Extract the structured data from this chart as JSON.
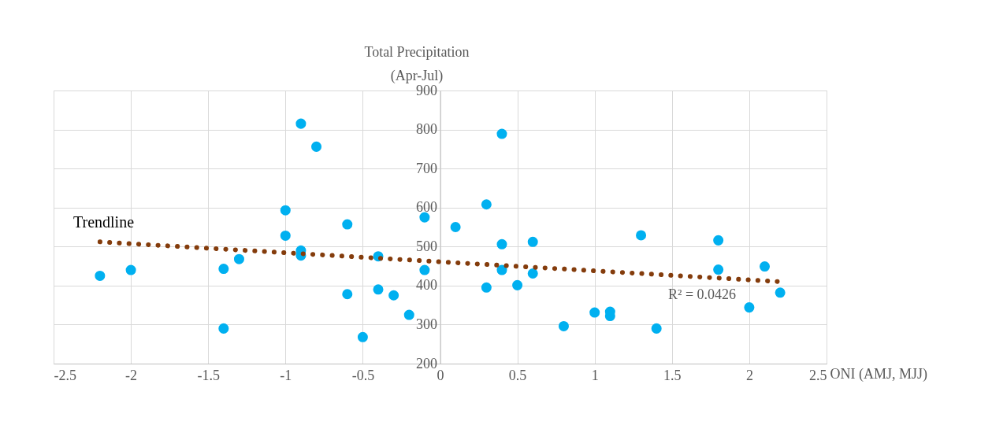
{
  "chart_data": {
    "type": "scatter",
    "xlabel": "ONI (AMJ, MJJ)",
    "ylabel": "Total Precipitation\n(Apr-Jul)",
    "xlim": [
      -2.5,
      2.5
    ],
    "xticks": [
      -2.5,
      -2,
      -1.5,
      -1,
      -0.5,
      0,
      0.5,
      1,
      1.5,
      2,
      2.5
    ],
    "ylim": [
      200,
      900
    ],
    "yticks": [
      200,
      300,
      400,
      500,
      600,
      700,
      800,
      900
    ],
    "grid": true,
    "annotations": [
      "Trendline",
      "R² = 0.0426"
    ],
    "series": [
      {
        "marker": "circle",
        "color": "#00b0f0",
        "x": [
          -2.2,
          -2.0,
          -1.4,
          -1.4,
          -1.3,
          -1.0,
          -1.0,
          -0.9,
          -0.9,
          -0.9,
          -0.8,
          -0.6,
          -0.6,
          -0.5,
          -0.4,
          -0.4,
          -0.3,
          -0.2,
          -0.1,
          -0.1,
          0.1,
          0.3,
          0.3,
          0.4,
          0.4,
          0.4,
          0.5,
          0.6,
          0.6,
          0.8,
          1.0,
          1.1,
          1.1,
          1.3,
          1.4,
          1.8,
          1.8,
          2.0,
          2.1,
          2.2
        ],
        "values": [
          425,
          440,
          443,
          290,
          468,
          593,
          528,
          815,
          490,
          477,
          756,
          557,
          378,
          268,
          475,
          390,
          375,
          325,
          575,
          440,
          550,
          608,
          395,
          789,
          506,
          440,
          401,
          512,
          431,
          296,
          331,
          333,
          322,
          529,
          290,
          516,
          441,
          344,
          449,
          382
        ]
      },
      {
        "type": "line",
        "color": "#843c0c",
        "line_style": "dotted",
        "x": [
          -2.2,
          2.2
        ],
        "values": [
          512,
          410
        ]
      }
    ]
  }
}
